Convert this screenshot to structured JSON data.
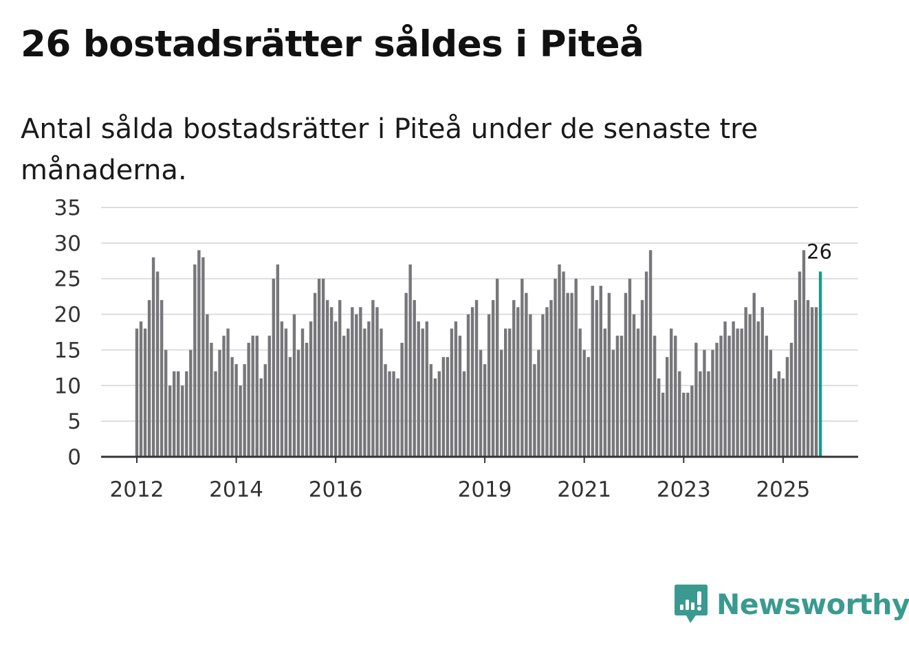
{
  "title": "26 bostadsrätter såldes i Piteå",
  "subtitle": "Antal sålda bostadsrätter i Piteå under de senaste tre månaderna.",
  "brand": {
    "name": "Newsworthy",
    "icon": "newsworthy-logo-icon"
  },
  "colors": {
    "bar": "#77767b",
    "highlight": "#1a9a8e",
    "grid": "#dddddd",
    "axis": "#333333",
    "brand": "#3a9a8f"
  },
  "chart_data": {
    "type": "bar",
    "title": "26 bostadsrätter såldes i Piteå",
    "xlabel": "",
    "ylabel": "",
    "ylim": [
      0,
      35
    ],
    "yticks": [
      0,
      5,
      10,
      15,
      20,
      25,
      30,
      35
    ],
    "grid": true,
    "start": {
      "year": 2012,
      "month": 1
    },
    "xtick_labels": [
      {
        "label": "2012",
        "index": 0
      },
      {
        "label": "2014",
        "index": 24
      },
      {
        "label": "2016",
        "index": 48
      },
      {
        "label": "2019",
        "index": 84
      },
      {
        "label": "2021",
        "index": 108
      },
      {
        "label": "2023",
        "index": 132
      },
      {
        "label": "2025",
        "index": 156
      }
    ],
    "values": [
      18,
      19,
      18,
      22,
      28,
      26,
      22,
      15,
      10,
      12,
      12,
      10,
      12,
      15,
      27,
      29,
      28,
      20,
      16,
      12,
      15,
      17,
      18,
      14,
      13,
      10,
      13,
      16,
      17,
      17,
      11,
      13,
      17,
      25,
      27,
      19,
      18,
      14,
      20,
      15,
      18,
      16,
      19,
      23,
      25,
      25,
      22,
      21,
      19,
      22,
      17,
      18,
      21,
      20,
      21,
      18,
      19,
      22,
      21,
      18,
      13,
      12,
      12,
      11,
      16,
      23,
      27,
      22,
      19,
      18,
      19,
      13,
      11,
      12,
      14,
      14,
      18,
      19,
      17,
      12,
      20,
      21,
      22,
      15,
      13,
      20,
      22,
      25,
      15,
      18,
      18,
      22,
      21,
      25,
      23,
      20,
      13,
      15,
      20,
      21,
      22,
      25,
      27,
      26,
      23,
      23,
      25,
      18,
      15,
      14,
      24,
      22,
      24,
      18,
      23,
      15,
      17,
      17,
      23,
      25,
      20,
      18,
      22,
      26,
      29,
      17,
      11,
      9,
      14,
      18,
      17,
      12,
      9,
      9,
      10,
      16,
      12,
      15,
      12,
      15,
      16,
      17,
      19,
      17,
      19,
      18,
      18,
      21,
      20,
      23,
      19,
      21,
      17,
      15,
      11,
      12,
      11,
      14,
      16,
      22,
      26,
      29,
      22,
      21,
      21,
      26
    ],
    "highlight_index": 165,
    "annotation": {
      "label": "26",
      "index": 165
    }
  }
}
